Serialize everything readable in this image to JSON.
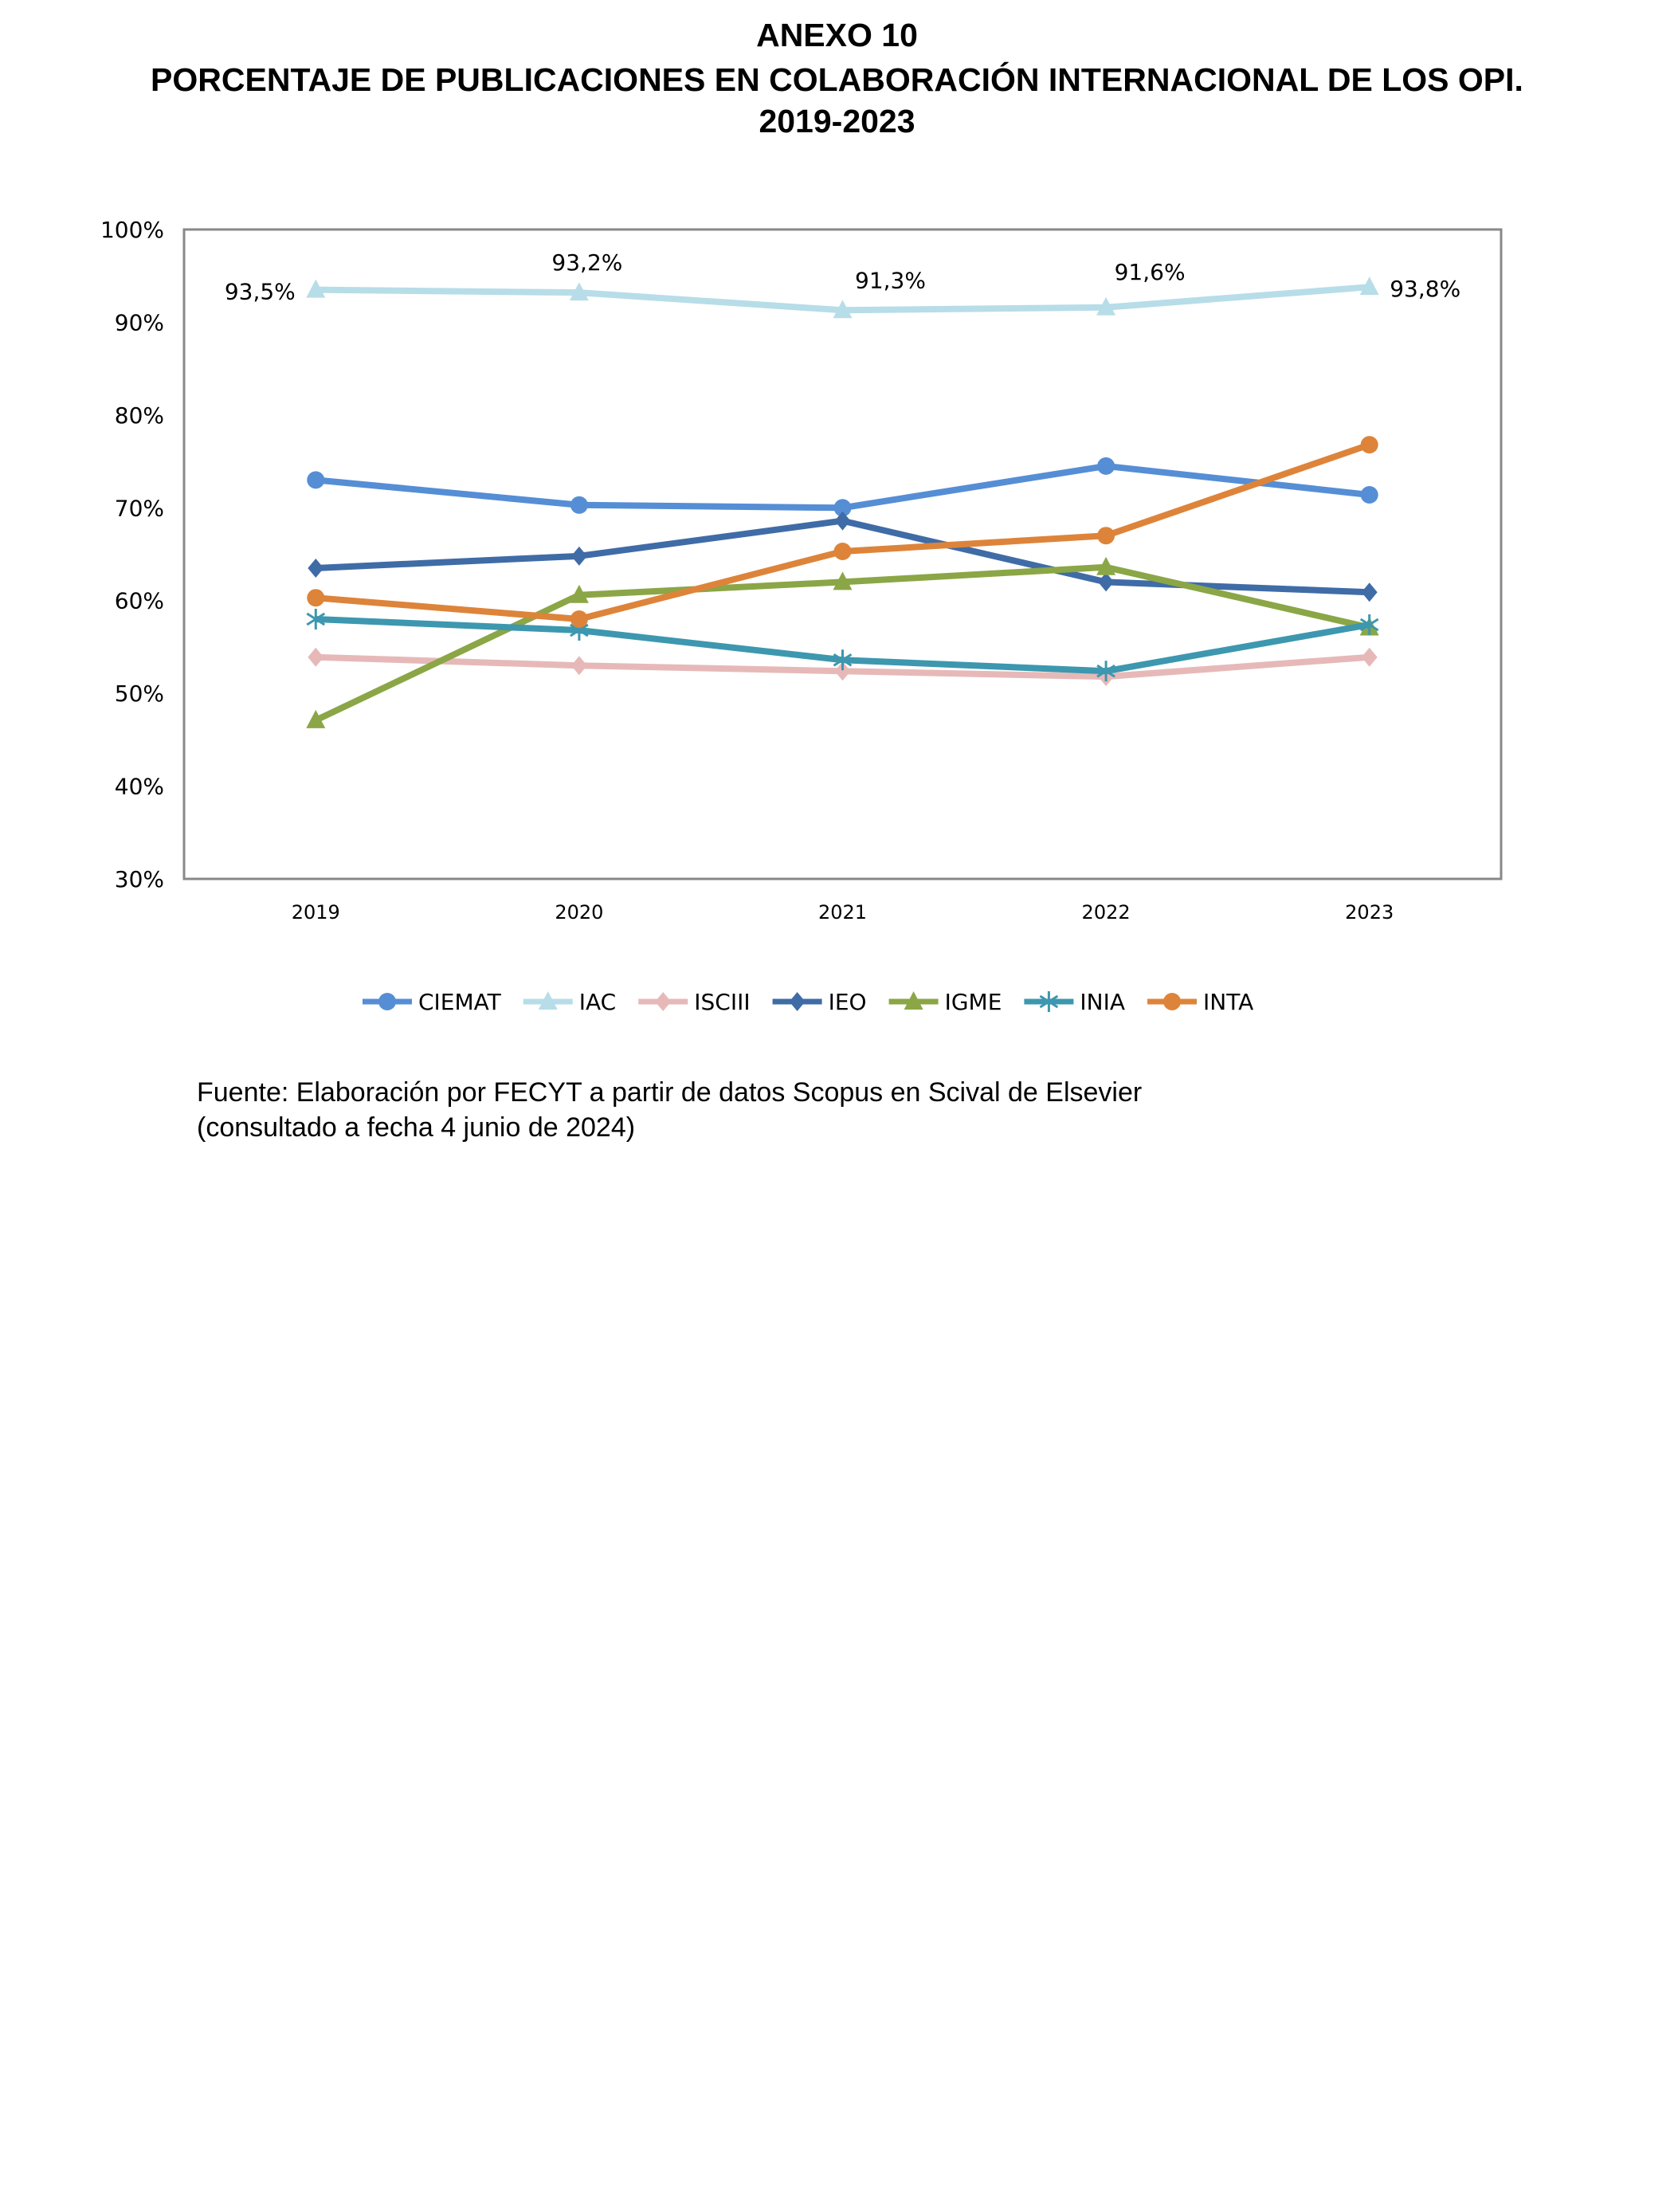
{
  "header": {
    "line1": "ANEXO 10",
    "line2": "PORCENTAJE DE PUBLICACIONES EN COLABORACIÓN INTERNACIONAL DE LOS OPI.",
    "line3": "2019-2023"
  },
  "source": {
    "line1": "Fuente: Elaboración por FECYT a partir de datos Scopus en Scival de Elsevier",
    "line2": "(consultado a fecha 4 junio de 2024)"
  },
  "chart_data": {
    "type": "line",
    "title": "",
    "categories": [
      "2019",
      "2020",
      "2021",
      "2022",
      "2023"
    ],
    "ylim": [
      30,
      100
    ],
    "yticks": [
      "30%",
      "40%",
      "50%",
      "60%",
      "70%",
      "80%",
      "90%",
      "100%"
    ],
    "grid": false,
    "legend": "bottom",
    "series": [
      {
        "name": "CIEMAT",
        "color": "#558ED5",
        "marker": "circle",
        "values": [
          73.0,
          70.3,
          70.0,
          74.5,
          71.4
        ]
      },
      {
        "name": "IAC",
        "color": "#B7DDE8",
        "marker": "triangle",
        "values": [
          93.5,
          93.2,
          91.3,
          91.6,
          93.8
        ],
        "labels": [
          "93,5%",
          "93,2%",
          "91,3%",
          "91,6%",
          "93,8%"
        ]
      },
      {
        "name": "ISCIII",
        "color": "#E6B9B8",
        "marker": "diamond",
        "values": [
          53.9,
          53.0,
          52.4,
          51.8,
          53.9
        ]
      },
      {
        "name": "IEO",
        "color": "#3F6CA6",
        "marker": "diamond",
        "values": [
          63.5,
          64.8,
          68.6,
          62.0,
          60.9
        ]
      },
      {
        "name": "IGME",
        "color": "#8BA646",
        "marker": "triangle",
        "values": [
          47.1,
          60.6,
          62.0,
          63.6,
          57.1
        ]
      },
      {
        "name": "INIA",
        "color": "#3D97AF",
        "marker": "star",
        "values": [
          58.0,
          56.8,
          53.6,
          52.4,
          57.4
        ]
      },
      {
        "name": "INTA",
        "color": "#DD843A",
        "marker": "circle",
        "values": [
          60.3,
          58.0,
          65.3,
          67.0,
          76.8
        ]
      }
    ]
  }
}
